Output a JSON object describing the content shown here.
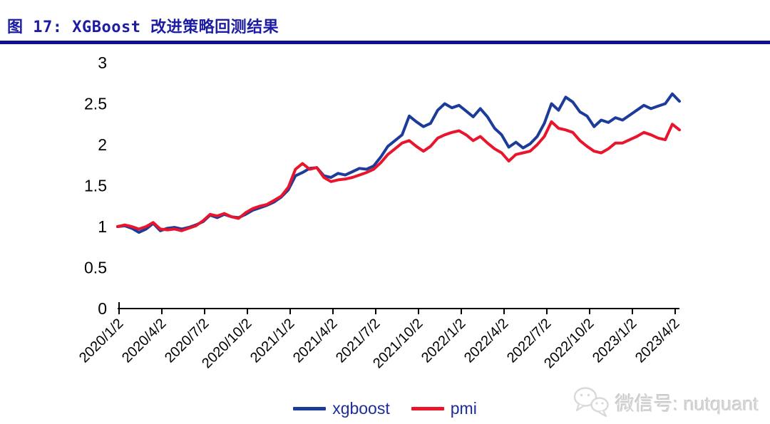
{
  "figure": {
    "title": "图 17: XGBoost 改进策略回测结果"
  },
  "watermark": {
    "icon": "wechat-icon",
    "text": "微信号: nutquant"
  },
  "colors": {
    "title": "#1d1da3",
    "separator": "#11118a",
    "xgboost_line": "#1d3c99",
    "pmi_line": "#e8152d",
    "axis": "#000000",
    "tick_label": "#000000",
    "legend_text": "#1e2d9c",
    "watermark_text": "#d6d6d6"
  },
  "chart_data": {
    "type": "line",
    "title": "图 17: XGBoost 改进策略回测结果",
    "xlabel": "",
    "ylabel": "",
    "ylim": [
      0,
      3
    ],
    "yticks": [
      0,
      0.5,
      1,
      1.5,
      2,
      2.5,
      3
    ],
    "grid": false,
    "legend_position": "bottom-center",
    "x_sampling": {
      "start_date": "2020/1/2",
      "end_date": "2023/4/中",
      "step_months": 0.5
    },
    "xticklabels": [
      "2020/1/2",
      "2020/4/2",
      "2020/7/2",
      "2020/10/2",
      "2021/1/2",
      "2021/4/2",
      "2021/7/2",
      "2021/10/2",
      "2022/1/2",
      "2022/4/2",
      "2022/7/2",
      "2022/10/2",
      "2023/1/2",
      "2023/4/2"
    ],
    "series": [
      {
        "name": "xgboost",
        "color": "#1d3c99",
        "values": [
          1.0,
          1.01,
          0.98,
          0.93,
          0.97,
          1.04,
          0.95,
          0.98,
          0.99,
          0.97,
          0.99,
          1.02,
          1.06,
          1.14,
          1.11,
          1.15,
          1.12,
          1.11,
          1.15,
          1.2,
          1.23,
          1.26,
          1.3,
          1.36,
          1.45,
          1.62,
          1.66,
          1.71,
          1.72,
          1.62,
          1.6,
          1.65,
          1.63,
          1.67,
          1.71,
          1.7,
          1.74,
          1.85,
          1.98,
          2.05,
          2.12,
          2.35,
          2.28,
          2.22,
          2.26,
          2.42,
          2.5,
          2.45,
          2.48,
          2.41,
          2.34,
          2.44,
          2.34,
          2.2,
          2.12,
          1.97,
          2.03,
          1.96,
          2.01,
          2.1,
          2.26,
          2.5,
          2.42,
          2.58,
          2.52,
          2.4,
          2.35,
          2.22,
          2.3,
          2.27,
          2.33,
          2.3,
          2.36,
          2.42,
          2.48,
          2.44,
          2.47,
          2.5,
          2.62,
          2.53
        ]
      },
      {
        "name": "pmi",
        "color": "#e8152d",
        "values": [
          1.0,
          1.02,
          1.0,
          0.97,
          1.0,
          1.05,
          0.97,
          0.96,
          0.97,
          0.95,
          0.98,
          1.01,
          1.07,
          1.15,
          1.13,
          1.16,
          1.12,
          1.1,
          1.17,
          1.22,
          1.25,
          1.27,
          1.32,
          1.37,
          1.48,
          1.7,
          1.77,
          1.7,
          1.72,
          1.6,
          1.55,
          1.57,
          1.58,
          1.6,
          1.63,
          1.66,
          1.7,
          1.78,
          1.88,
          1.95,
          2.02,
          2.05,
          1.98,
          1.92,
          1.98,
          2.08,
          2.12,
          2.15,
          2.17,
          2.12,
          2.05,
          2.1,
          2.02,
          1.95,
          1.9,
          1.8,
          1.88,
          1.9,
          1.92,
          2.0,
          2.1,
          2.28,
          2.2,
          2.18,
          2.15,
          2.05,
          1.98,
          1.92,
          1.9,
          1.95,
          2.02,
          2.02,
          2.06,
          2.1,
          2.15,
          2.12,
          2.08,
          2.06,
          2.25,
          2.18
        ]
      }
    ]
  }
}
